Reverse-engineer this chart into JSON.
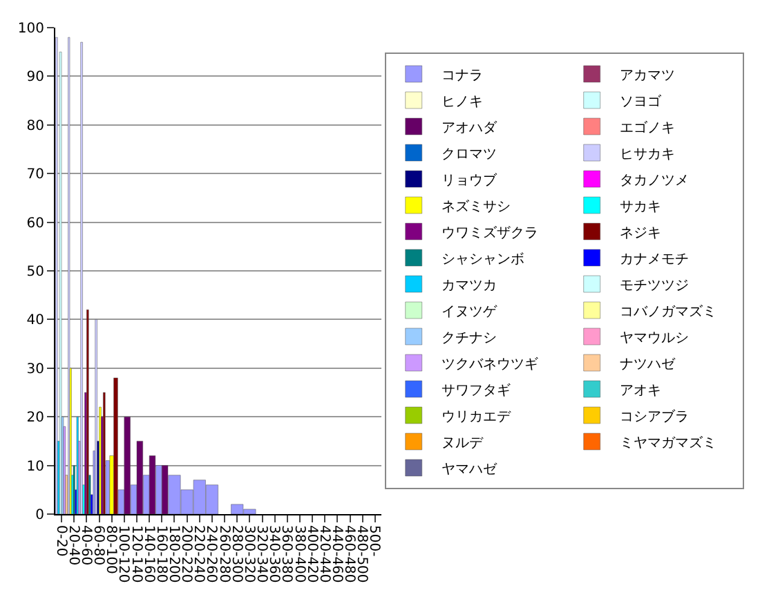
{
  "chart_data": {
    "type": "bar",
    "categories": [
      "0-20",
      "20-40",
      "40-60",
      "60-80",
      "80-100",
      "100-120",
      "120-140",
      "140-160",
      "160-180",
      "180-200",
      "200-220",
      "220-240",
      "240-260",
      "260-280",
      "280-300",
      "300-320",
      "320-340",
      "340-360",
      "360-380",
      "380-400",
      "400-420",
      "420-440",
      "440-460",
      "460-480",
      "480-500",
      "500-"
    ],
    "ylim": [
      0,
      100
    ],
    "yticks": [
      0,
      10,
      20,
      30,
      40,
      50,
      60,
      70,
      80,
      90,
      100
    ],
    "grid": "y",
    "legend": "right",
    "series": [
      {
        "name": "コナラ",
        "color": "#9999ff",
        "values": [
          null,
          null,
          null,
          13,
          11,
          5,
          6,
          8,
          10,
          8,
          5,
          7,
          6,
          null,
          2,
          1,
          null,
          null,
          null,
          null,
          null,
          null,
          null,
          null,
          null,
          null
        ]
      },
      {
        "name": "アカマツ",
        "color": "#993366",
        "values": [
          null,
          null,
          null,
          null,
          null,
          null,
          null,
          null,
          null,
          null,
          null,
          null,
          null,
          null,
          null,
          null,
          null,
          null,
          null,
          null,
          null,
          null,
          null,
          null,
          null,
          null
        ]
      },
      {
        "name": "ヒノキ",
        "color": "#ffffcc",
        "values": [
          null,
          null,
          null,
          null,
          null,
          null,
          null,
          null,
          null,
          null,
          null,
          null,
          null,
          null,
          null,
          null,
          null,
          null,
          null,
          null,
          null,
          null,
          null,
          null,
          null,
          null
        ]
      },
      {
        "name": "ソヨゴ",
        "color": "#ccffff",
        "values": [
          null,
          null,
          null,
          null,
          null,
          null,
          null,
          null,
          null,
          null,
          null,
          null,
          null,
          null,
          null,
          null,
          null,
          null,
          null,
          null,
          null,
          null,
          null,
          null,
          null,
          null
        ]
      },
      {
        "name": "アオハダ",
        "color": "#660066",
        "values": [
          null,
          null,
          null,
          null,
          null,
          20,
          15,
          12,
          10,
          null,
          null,
          null,
          null,
          null,
          null,
          null,
          null,
          null,
          null,
          null,
          null,
          null,
          null,
          null,
          null,
          null
        ]
      },
      {
        "name": "エゴノキ",
        "color": "#ff8080",
        "values": [
          null,
          null,
          null,
          null,
          null,
          null,
          null,
          null,
          null,
          null,
          null,
          null,
          null,
          null,
          null,
          null,
          null,
          null,
          null,
          null,
          null,
          null,
          null,
          null,
          null,
          null
        ]
      },
      {
        "name": "クロマツ",
        "color": "#0066cc",
        "values": [
          null,
          null,
          null,
          null,
          null,
          null,
          null,
          null,
          null,
          null,
          null,
          null,
          null,
          null,
          null,
          null,
          null,
          null,
          null,
          null,
          null,
          null,
          null,
          null,
          null,
          null
        ]
      },
      {
        "name": "ヒサカキ",
        "color": "#ccccff",
        "values": [
          98,
          98,
          97,
          40,
          null,
          null,
          null,
          null,
          null,
          null,
          null,
          null,
          null,
          null,
          null,
          null,
          null,
          null,
          null,
          null,
          null,
          null,
          null,
          null,
          null,
          null
        ]
      },
      {
        "name": "リョウブ",
        "color": "#000080",
        "values": [
          null,
          null,
          null,
          15,
          null,
          null,
          null,
          null,
          null,
          null,
          null,
          null,
          null,
          null,
          null,
          null,
          null,
          null,
          null,
          null,
          null,
          null,
          null,
          null,
          null,
          null
        ]
      },
      {
        "name": "タカノツメ",
        "color": "#ff00ff",
        "values": [
          null,
          null,
          null,
          null,
          null,
          null,
          null,
          null,
          null,
          null,
          null,
          null,
          null,
          null,
          null,
          null,
          null,
          null,
          null,
          null,
          null,
          null,
          null,
          null,
          null,
          null
        ]
      },
      {
        "name": "ネズミサシ",
        "color": "#ffff00",
        "values": [
          null,
          30,
          null,
          22,
          12,
          null,
          null,
          null,
          null,
          null,
          null,
          null,
          null,
          null,
          null,
          null,
          null,
          null,
          null,
          null,
          null,
          null,
          null,
          null,
          null,
          null
        ]
      },
      {
        "name": "サカキ",
        "color": "#00ffff",
        "values": [
          null,
          8,
          6,
          null,
          null,
          null,
          null,
          null,
          null,
          null,
          null,
          null,
          null,
          null,
          null,
          null,
          null,
          null,
          null,
          null,
          null,
          null,
          null,
          null,
          null,
          null
        ]
      },
      {
        "name": "ウワミズザクラ",
        "color": "#800080",
        "values": [
          null,
          null,
          25,
          20,
          null,
          null,
          null,
          null,
          null,
          null,
          null,
          null,
          null,
          null,
          null,
          null,
          null,
          null,
          null,
          null,
          null,
          null,
          null,
          null,
          null,
          null
        ]
      },
      {
        "name": "ネジキ",
        "color": "#800000",
        "values": [
          null,
          null,
          42,
          25,
          28,
          null,
          null,
          null,
          null,
          null,
          null,
          null,
          null,
          null,
          null,
          null,
          null,
          null,
          null,
          null,
          null,
          null,
          null,
          null,
          null,
          null
        ]
      },
      {
        "name": "シャシャンボ",
        "color": "#008080",
        "values": [
          null,
          10,
          8,
          null,
          null,
          null,
          null,
          null,
          null,
          null,
          null,
          null,
          null,
          null,
          null,
          null,
          null,
          null,
          null,
          null,
          null,
          null,
          null,
          null,
          null,
          null
        ]
      },
      {
        "name": "カナメモチ",
        "color": "#0000ff",
        "values": [
          null,
          5,
          4,
          null,
          null,
          null,
          null,
          null,
          null,
          null,
          null,
          null,
          null,
          null,
          null,
          null,
          null,
          null,
          null,
          null,
          null,
          null,
          null,
          null,
          null,
          null
        ]
      },
      {
        "name": "カマツカ",
        "color": "#00ccff",
        "values": [
          15,
          20,
          null,
          null,
          null,
          null,
          null,
          null,
          null,
          null,
          null,
          null,
          null,
          null,
          null,
          null,
          null,
          null,
          null,
          null,
          null,
          null,
          null,
          null,
          null,
          null
        ]
      },
      {
        "name": "モチツツジ",
        "color": "#ccffff",
        "values": [
          95,
          null,
          null,
          null,
          null,
          null,
          null,
          null,
          null,
          null,
          null,
          null,
          null,
          null,
          null,
          null,
          null,
          null,
          null,
          null,
          null,
          null,
          null,
          null,
          null,
          null
        ]
      },
      {
        "name": "イヌツゲ",
        "color": "#ccffcc",
        "values": [
          null,
          null,
          null,
          null,
          null,
          null,
          null,
          null,
          null,
          null,
          null,
          null,
          null,
          null,
          null,
          null,
          null,
          null,
          null,
          null,
          null,
          null,
          null,
          null,
          null,
          null
        ]
      },
      {
        "name": "コバノガマズミ",
        "color": "#ffff99",
        "values": [
          null,
          null,
          null,
          null,
          null,
          null,
          null,
          null,
          null,
          null,
          null,
          null,
          null,
          null,
          null,
          null,
          null,
          null,
          null,
          null,
          null,
          null,
          null,
          null,
          null,
          null
        ]
      },
      {
        "name": "クチナシ",
        "color": "#99ccff",
        "values": [
          20,
          null,
          null,
          null,
          null,
          null,
          null,
          null,
          null,
          null,
          null,
          null,
          null,
          null,
          null,
          null,
          null,
          null,
          null,
          null,
          null,
          null,
          null,
          null,
          null,
          null
        ]
      },
      {
        "name": "ヤマウルシ",
        "color": "#ff99cc",
        "values": [
          null,
          null,
          null,
          null,
          null,
          null,
          null,
          null,
          null,
          null,
          null,
          null,
          null,
          null,
          null,
          null,
          null,
          null,
          null,
          null,
          null,
          null,
          null,
          null,
          null,
          null
        ]
      },
      {
        "name": "ツクバネウツギ",
        "color": "#cc99ff",
        "values": [
          18,
          15,
          null,
          null,
          null,
          null,
          null,
          null,
          null,
          null,
          null,
          null,
          null,
          null,
          null,
          null,
          null,
          null,
          null,
          null,
          null,
          null,
          null,
          null,
          null,
          null
        ]
      },
      {
        "name": "ナツハゼ",
        "color": "#ffcc99",
        "values": [
          8,
          null,
          null,
          null,
          null,
          null,
          null,
          null,
          null,
          null,
          null,
          null,
          null,
          null,
          null,
          null,
          null,
          null,
          null,
          null,
          null,
          null,
          null,
          null,
          null,
          null
        ]
      },
      {
        "name": "サワフタギ",
        "color": "#3366ff",
        "values": [
          null,
          null,
          null,
          null,
          null,
          null,
          null,
          null,
          null,
          null,
          null,
          null,
          null,
          null,
          null,
          null,
          null,
          null,
          null,
          null,
          null,
          null,
          null,
          null,
          null,
          null
        ]
      },
      {
        "name": "アオキ",
        "color": "#33cccc",
        "values": [
          null,
          null,
          null,
          null,
          null,
          null,
          null,
          null,
          null,
          null,
          null,
          null,
          null,
          null,
          null,
          null,
          null,
          null,
          null,
          null,
          null,
          null,
          null,
          null,
          null,
          null
        ]
      },
      {
        "name": "ウリカエデ",
        "color": "#99cc00",
        "values": [
          null,
          null,
          null,
          null,
          null,
          null,
          null,
          null,
          null,
          null,
          null,
          null,
          null,
          null,
          null,
          null,
          null,
          null,
          null,
          null,
          null,
          null,
          null,
          null,
          null,
          null
        ]
      },
      {
        "name": "コシアブラ",
        "color": "#ffcc00",
        "values": [
          null,
          null,
          null,
          null,
          null,
          null,
          null,
          null,
          null,
          null,
          null,
          null,
          null,
          null,
          null,
          null,
          null,
          null,
          null,
          null,
          null,
          null,
          null,
          null,
          null,
          null
        ]
      },
      {
        "name": "ヌルデ",
        "color": "#ff9900",
        "values": [
          null,
          null,
          null,
          null,
          null,
          null,
          null,
          null,
          null,
          null,
          null,
          null,
          null,
          null,
          null,
          null,
          null,
          null,
          null,
          null,
          null,
          null,
          null,
          null,
          null,
          null
        ]
      },
      {
        "name": "ミヤマガマズミ",
        "color": "#ff6600",
        "values": [
          null,
          null,
          null,
          null,
          null,
          null,
          null,
          null,
          null,
          null,
          null,
          null,
          null,
          null,
          null,
          null,
          null,
          null,
          null,
          null,
          null,
          null,
          null,
          null,
          null,
          null
        ]
      },
      {
        "name": "ヤマハゼ",
        "color": "#666699",
        "values": [
          null,
          null,
          null,
          null,
          null,
          null,
          null,
          null,
          null,
          null,
          null,
          null,
          null,
          null,
          null,
          null,
          null,
          null,
          null,
          null,
          null,
          null,
          null,
          null,
          null,
          null
        ]
      }
    ]
  }
}
